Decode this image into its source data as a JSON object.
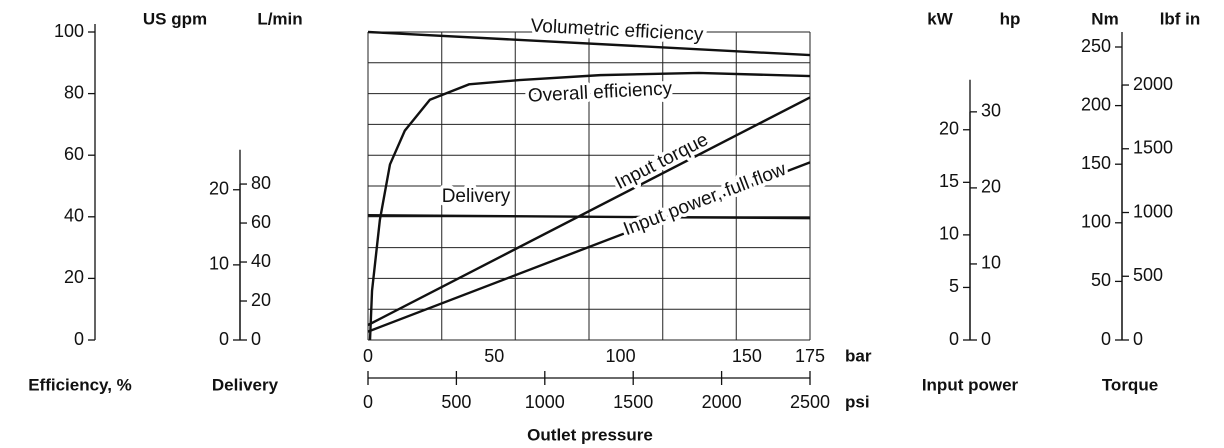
{
  "chart_data": {
    "type": "line",
    "xlim": [
      0,
      175
    ],
    "xticks": [
      0,
      50,
      100,
      150,
      175
    ],
    "x_unit": "bar",
    "x2lim": [
      0,
      2500
    ],
    "x2ticks": [
      0,
      500,
      1000,
      1500,
      2000,
      2500
    ],
    "x2_unit": "psi",
    "x_label": "Outlet pressure",
    "grid": true,
    "grid_x": [
      0,
      29.2,
      58.3,
      87.5,
      116.7,
      145.8,
      175
    ],
    "grid_y": [
      0,
      10,
      20,
      30,
      40,
      50,
      60,
      70,
      80,
      90,
      100
    ],
    "efficiency_axis": {
      "label": "Efficiency, %",
      "lim": [
        0,
        100
      ],
      "ticks": [
        0,
        20,
        40,
        60,
        80,
        100
      ]
    },
    "delivery_axis": {
      "label": "Delivery",
      "gpm": {
        "unit": "US gpm",
        "lim": [
          0,
          41
        ],
        "ticks": [
          0,
          10,
          20
        ]
      },
      "lpm": {
        "unit": "L/min",
        "lim": [
          0,
          158
        ],
        "ticks": [
          0,
          20,
          40,
          60,
          80
        ]
      }
    },
    "power_axis": {
      "label": "Input power",
      "kw": {
        "unit": "kW",
        "lim": [
          0,
          29.3
        ],
        "ticks": [
          0,
          5,
          10,
          15,
          20
        ]
      },
      "hp": {
        "unit": "hp",
        "lim": [
          0,
          40.5
        ],
        "ticks": [
          0,
          10,
          20,
          30
        ]
      }
    },
    "torque_axis": {
      "label": "Torque",
      "nm": {
        "unit": "Nm",
        "lim": [
          0,
          262.8
        ],
        "ticks": [
          0,
          50,
          100,
          150,
          200,
          250
        ]
      },
      "lbf_in": {
        "unit": "lbf in",
        "lim": [
          0,
          2416
        ],
        "ticks": [
          0,
          500,
          1000,
          1500,
          2000
        ]
      }
    },
    "series": [
      {
        "name": "Volumetric efficiency",
        "axis": "efficiency_axis",
        "color": "#111111",
        "x": [
          0,
          175
        ],
        "values": [
          100,
          92.5
        ]
      },
      {
        "name": "Overall efficiency",
        "axis": "efficiency_axis",
        "color": "#111111",
        "x": [
          0.8,
          1.6,
          4.7,
          8.7,
          14.6,
          24.5,
          40,
          60,
          92,
          131,
          175
        ],
        "values": [
          0,
          16,
          39,
          57,
          68,
          78,
          83,
          84.4,
          86,
          86.7,
          85.7
        ]
      },
      {
        "name": "Delivery",
        "axis": "delivery_axis.lpm",
        "color": "#111111",
        "x": [
          0,
          175
        ],
        "values": [
          64,
          62.5
        ]
      },
      {
        "name": "Input torque",
        "axis": "torque_axis.nm",
        "color": "#111111",
        "x": [
          0,
          175
        ],
        "values": [
          12.8,
          207
        ]
      },
      {
        "name": "Input power, full flow",
        "axis": "power_axis.kw",
        "color": "#111111",
        "x": [
          0,
          175
        ],
        "values": [
          0.8,
          16.9
        ]
      }
    ]
  }
}
